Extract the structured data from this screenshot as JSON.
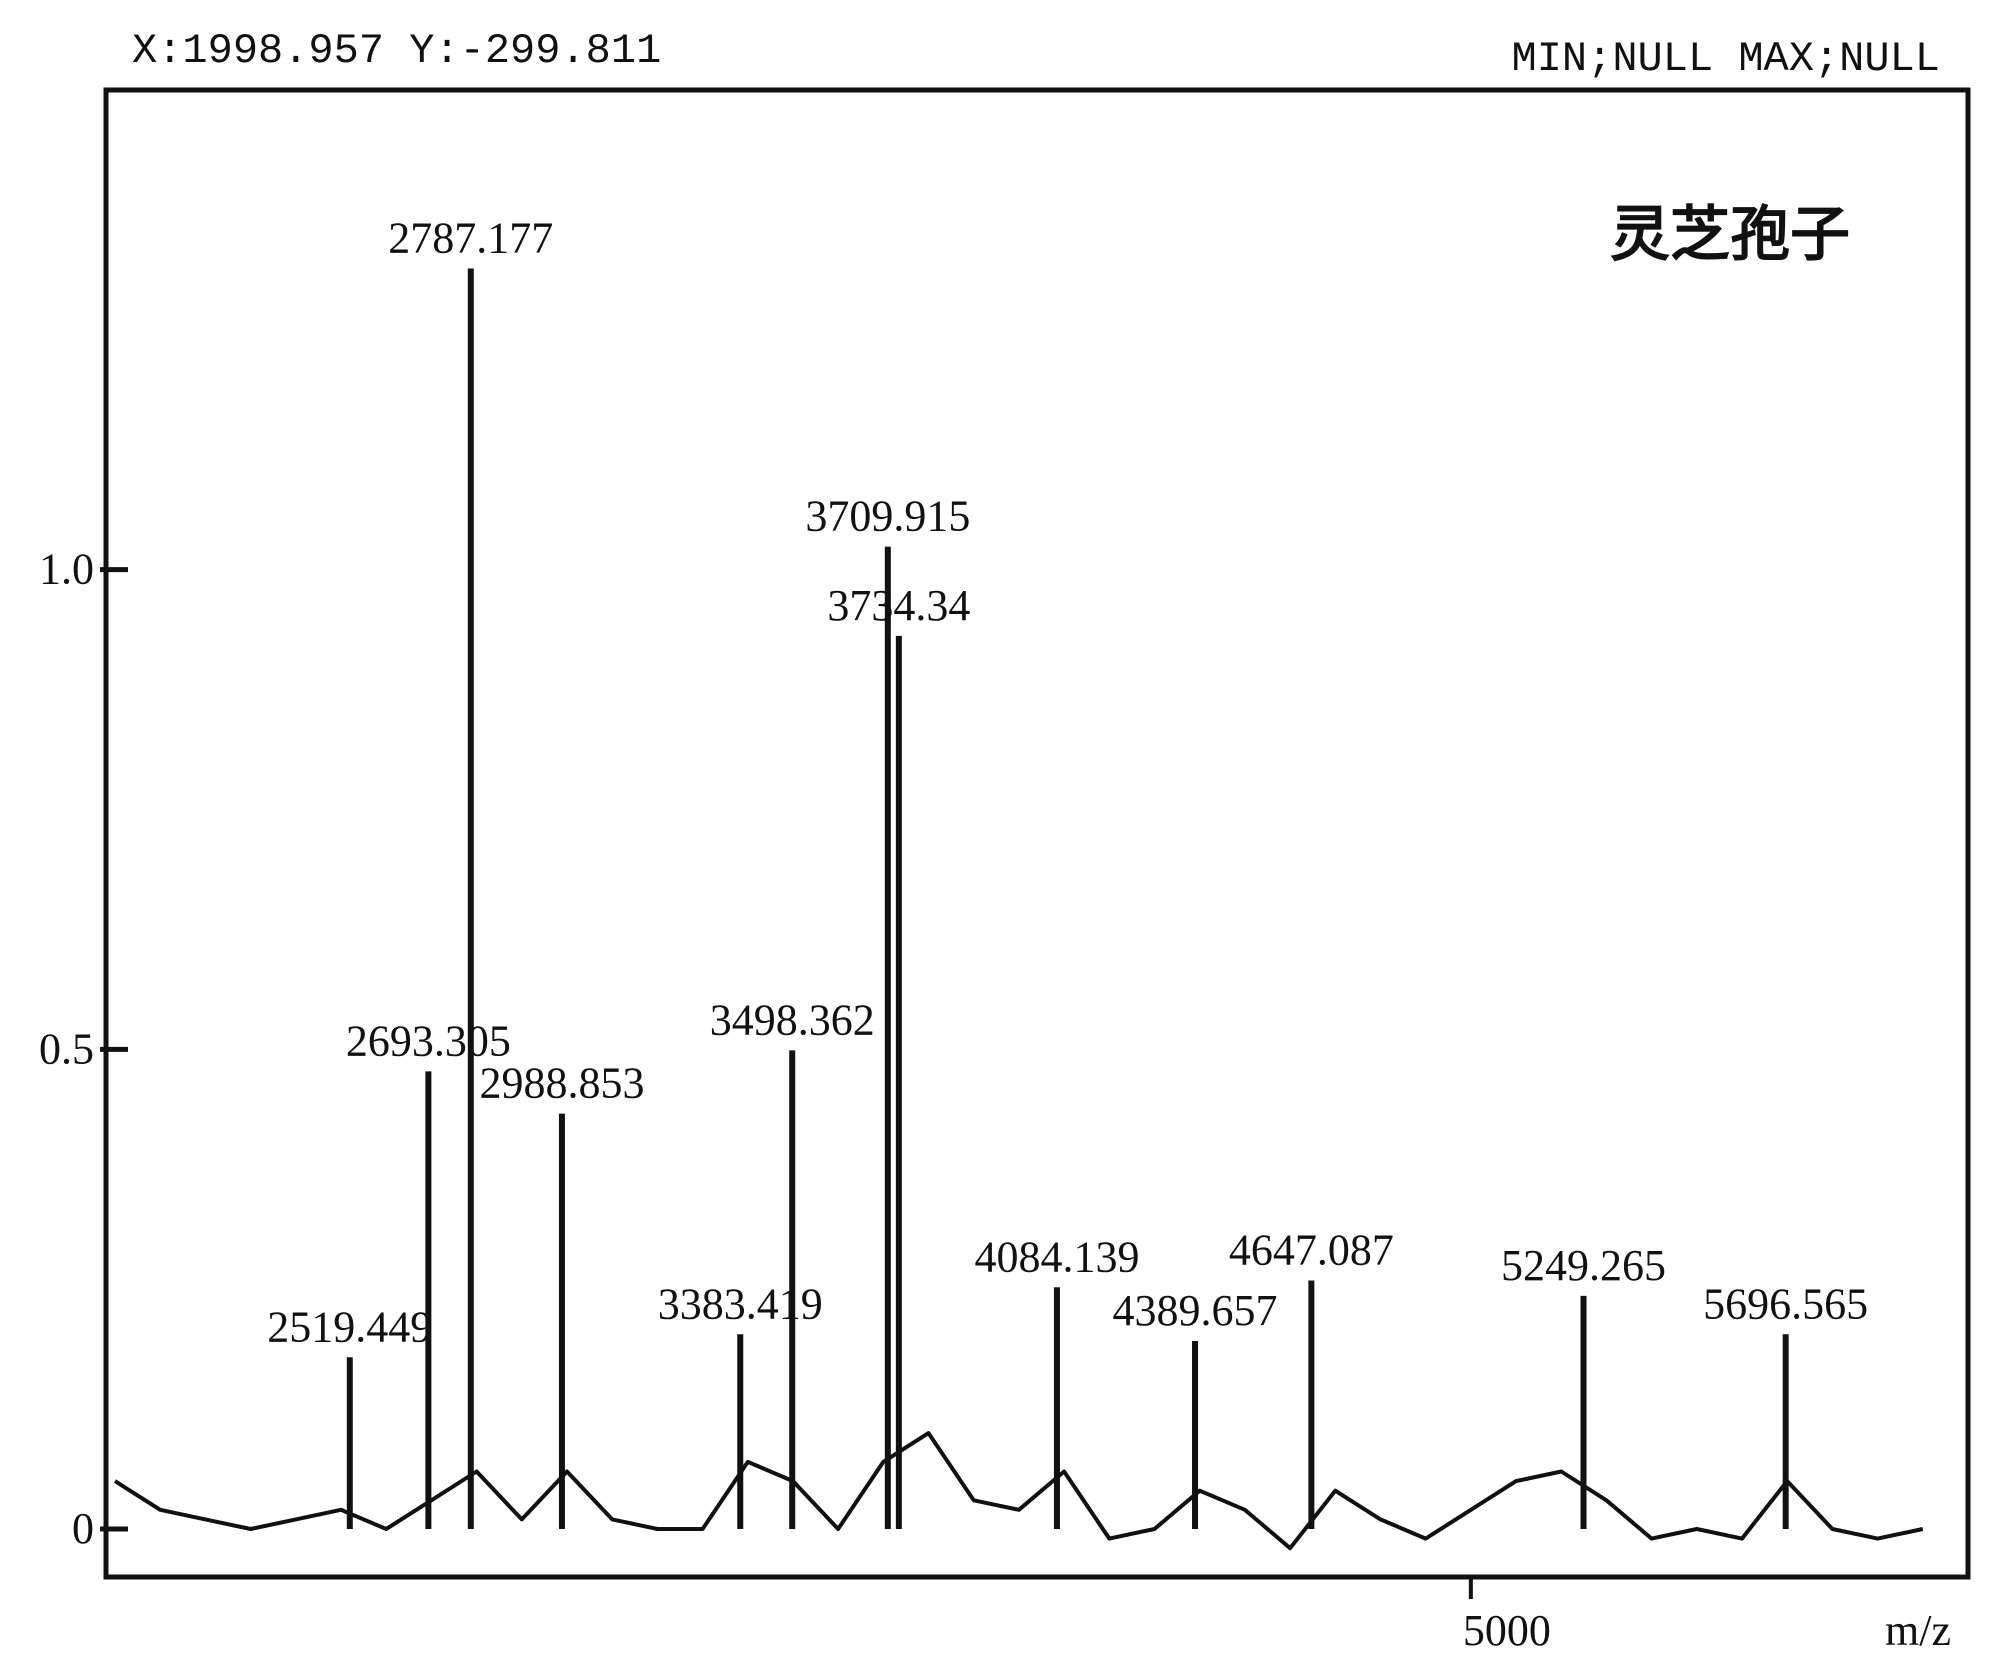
{
  "chart_data": {
    "type": "spectrum",
    "title": "灵芝孢子",
    "readout": "X:1998.957 Y:-299.811",
    "range_note": "MIN;NULL MAX;NULL",
    "x_label": "m/z",
    "xlim": [
      1980,
      6100
    ],
    "xticks": [
      5000
    ],
    "ylim": [
      -0.05,
      1.5
    ],
    "yticks": [
      0,
      0.5,
      {
        "value": 1,
        "label": "1.0"
      }
    ],
    "color": "#111111",
    "peaks": {
      "x": [
        2519.449,
        2693.305,
        2787.177,
        2988.853,
        3383.419,
        3498.362,
        3709.915,
        3734.34,
        4084.139,
        4389.657,
        4647.087,
        5249.265,
        5696.565
      ],
      "values": [
        0.179,
        0.477,
        1.314,
        0.433,
        0.203,
        0.499,
        1.024,
        0.931,
        0.252,
        0.196,
        0.259,
        0.243,
        0.203
      ]
    },
    "baseline": {
      "x": [
        2000,
        2100,
        2200,
        2300,
        2400,
        2500,
        2600,
        2700,
        2800,
        2900,
        3000,
        3100,
        3200,
        3300,
        3400,
        3500,
        3600,
        3700,
        3800,
        3900,
        4000,
        4100,
        4200,
        4300,
        4400,
        4500,
        4600,
        4700,
        4800,
        4900,
        5000,
        5100,
        5200,
        5300,
        5400,
        5500,
        5600,
        5700,
        5800,
        5900,
        6000
      ],
      "values": [
        0.05,
        0.02,
        0.01,
        0.0,
        0.01,
        0.02,
        0.0,
        0.03,
        0.06,
        0.01,
        0.06,
        0.01,
        0.0,
        0.0,
        0.07,
        0.05,
        0.0,
        0.07,
        0.1,
        0.03,
        0.02,
        0.06,
        -0.01,
        0.0,
        0.04,
        0.02,
        -0.02,
        0.04,
        0.01,
        -0.01,
        0.02,
        0.05,
        0.06,
        0.03,
        -0.01,
        0.0,
        -0.01,
        0.05,
        0.0,
        -0.01,
        0.0
      ]
    }
  }
}
